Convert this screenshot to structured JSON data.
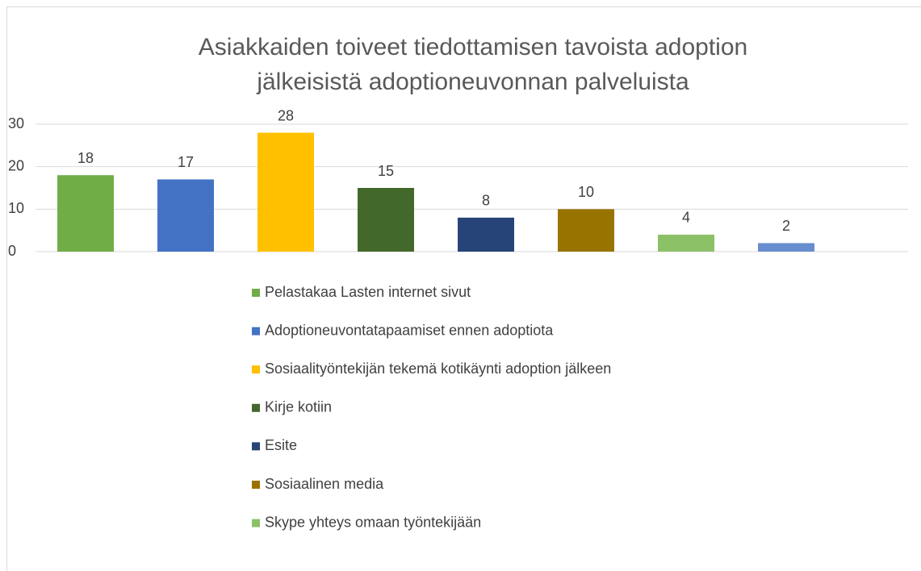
{
  "chart_data": {
    "type": "bar",
    "title": [
      "Asiakkaiden toiveet tiedottamisen tavoista adoption",
      "jälkeisistä adoptioneuvonnan palveluista"
    ],
    "categories": [
      "Pelastakaa Lasten internet sivut",
      "Adoptioneuvontatapaamiset ennen adoptiota",
      "Sosiaalityöntekijän tekemä kotikäynti adoption jälkeen",
      "Kirje kotiin",
      "Esite",
      "Sosiaalinen media",
      "Skype yhteys omaan työntekijään",
      null
    ],
    "values": [
      18,
      17,
      28,
      15,
      8,
      10,
      4,
      2
    ],
    "colors": [
      "#70ad47",
      "#4472c4",
      "#ffc000",
      "#43682b",
      "#264478",
      "#997300",
      "#8cc168",
      "#698ed0"
    ],
    "ylim": [
      0,
      30
    ],
    "yticks": [
      0,
      10,
      20,
      30
    ],
    "grid": true,
    "legend": "bottom"
  }
}
